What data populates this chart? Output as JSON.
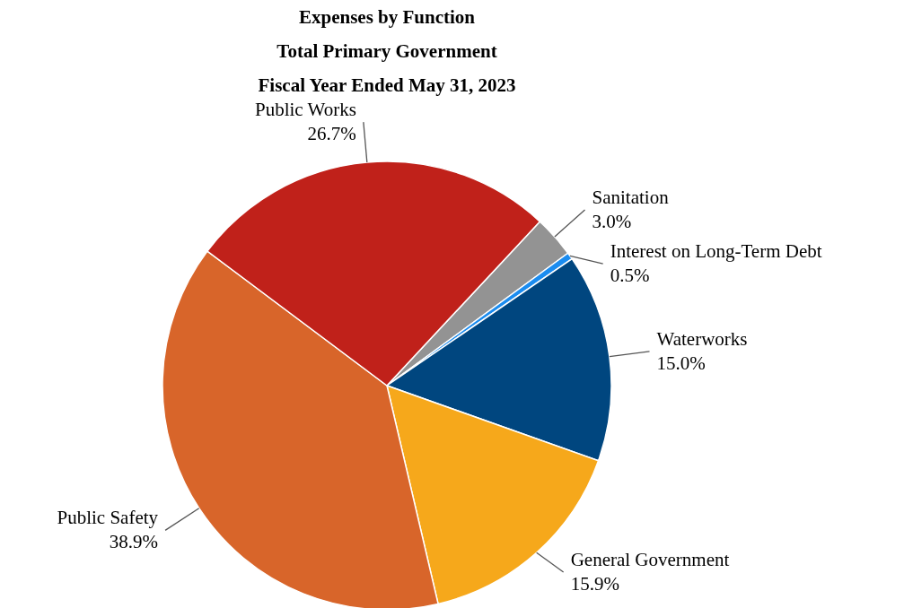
{
  "chart_data": {
    "type": "pie",
    "title": "Expenses by Function\nTotal Primary Government\nFiscal Year Ended May 31, 2023",
    "categories": [
      "Sanitation",
      "Interest on Long-Term Debt",
      "Waterworks",
      "General Government",
      "Public Safety",
      "Public Works"
    ],
    "values": [
      3.0,
      0.5,
      15.0,
      15.9,
      38.9,
      26.7
    ],
    "value_labels": [
      "3.0%",
      "0.5%",
      "15.0%",
      "15.9%",
      "38.9%",
      "26.7%"
    ],
    "colors": [
      "#939393",
      "#1a8cf0",
      "#00467f",
      "#f6a81b",
      "#d8652a",
      "#c0211a"
    ]
  }
}
